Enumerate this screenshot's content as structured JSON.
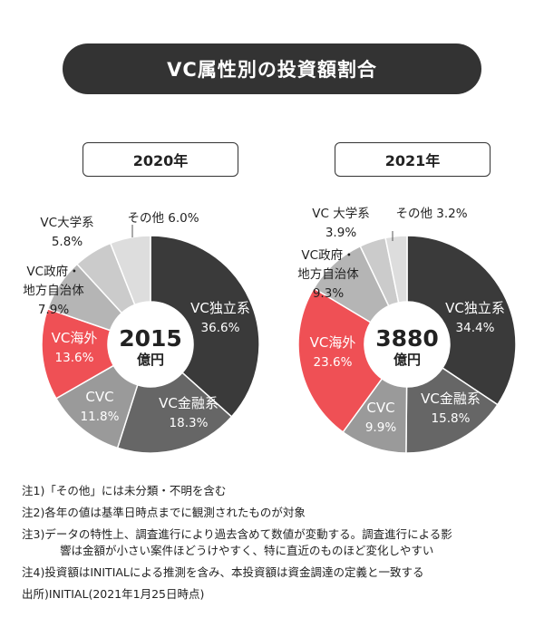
{
  "title": "VC属性別の投資額割合",
  "colors": {
    "vc_independent": "#3a3a3a",
    "vc_financial": "#666666",
    "cvc": "#9a9a9a",
    "vc_overseas": "#ef5055",
    "vc_government": "#b5b5b5",
    "vc_university": "#cbcbcb",
    "other": "#dddddd"
  },
  "chart_data": [
    {
      "type": "pie",
      "donut": true,
      "title": "2020年",
      "total_value": "2015",
      "total_unit": "億円",
      "slices": [
        {
          "label": "VC独立系",
          "value": 36.6,
          "value_label": "36.6%",
          "color_key": "vc_independent"
        },
        {
          "label": "VC金融系",
          "value": 18.3,
          "value_label": "18.3%",
          "color_key": "vc_financial"
        },
        {
          "label": "CVC",
          "value": 11.8,
          "value_label": "11.8%",
          "color_key": "cvc"
        },
        {
          "label": "VC海外",
          "value": 13.6,
          "value_label": "13.6%",
          "color_key": "vc_overseas"
        },
        {
          "label": "VC政府・地方自治体",
          "value": 7.9,
          "value_label": "7.9%",
          "color_key": "vc_government"
        },
        {
          "label": "VC大学系",
          "value": 5.8,
          "value_label": "5.8%",
          "color_key": "vc_university"
        },
        {
          "label": "その他",
          "value": 6.0,
          "value_label": "6.0%",
          "color_key": "other"
        }
      ]
    },
    {
      "type": "pie",
      "donut": true,
      "title": "2021年",
      "total_value": "3880",
      "total_unit": "億円",
      "slices": [
        {
          "label": "VC独立系",
          "value": 34.4,
          "value_label": "34.4%",
          "color_key": "vc_independent"
        },
        {
          "label": "VC金融系",
          "value": 15.8,
          "value_label": "15.8%",
          "color_key": "vc_financial"
        },
        {
          "label": "CVC",
          "value": 9.9,
          "value_label": "9.9%",
          "color_key": "cvc"
        },
        {
          "label": "VC海外",
          "value": 23.6,
          "value_label": "23.6%",
          "color_key": "vc_overseas"
        },
        {
          "label": "VC政府・地方自治体",
          "value": 9.3,
          "value_label": "9.3%",
          "color_key": "vc_government"
        },
        {
          "label": "VC大学系",
          "value": 3.9,
          "value_label": "3.9%",
          "color_key": "vc_university"
        },
        {
          "label": "その他",
          "value": 3.2,
          "value_label": "3.2%",
          "color_key": "other"
        }
      ]
    }
  ],
  "notes": [
    {
      "lines": [
        "注1)「その他」には未分類・不明を含む"
      ]
    },
    {
      "lines": [
        "注2)各年の値は基準日時点までに観測されたものが対象"
      ]
    },
    {
      "lines": [
        "注3)データの特性上、調査進行により過去含めて数値が変動する。調査進行による影",
        "響は金額が小さい案件ほどうけやすく、特に直近のものほど変化しやすい"
      ]
    },
    {
      "lines": [
        "注4)投資額はINITIALによる推測を含み、本投資額は資金調達の定義と一致する"
      ]
    },
    {
      "lines": [
        "出所)INITIAL(2021年1月25日時点)"
      ]
    }
  ]
}
